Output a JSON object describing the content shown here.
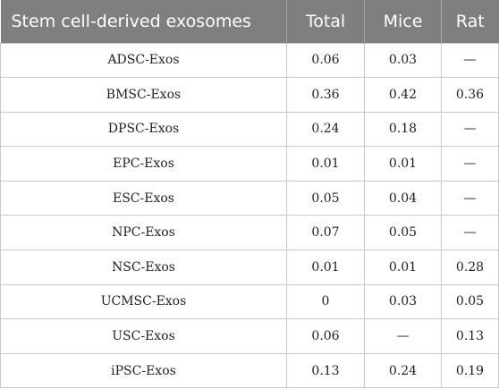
{
  "table": {
    "headers": [
      "Stem cell-derived exosomes",
      "Total",
      "Mice",
      "Rat"
    ],
    "rows": [
      [
        "ADSC-Exos",
        "0.06",
        "0.03",
        "—"
      ],
      [
        "BMSC-Exos",
        "0.36",
        "0.42",
        "0.36"
      ],
      [
        "DPSC-Exos",
        "0.24",
        "0.18",
        "—"
      ],
      [
        "EPC-Exos",
        "0.01",
        "0.01",
        "—"
      ],
      [
        "ESC-Exos",
        "0.05",
        "0.04",
        "—"
      ],
      [
        "NPC-Exos",
        "0.07",
        "0.05",
        "—"
      ],
      [
        "NSC-Exos",
        "0.01",
        "0.01",
        "0.28"
      ],
      [
        "UCMSC-Exos",
        "0",
        "0.03",
        "0.05"
      ],
      [
        "USC-Exos",
        "0.06",
        "—",
        "0.13"
      ],
      [
        "iPSC-Exos",
        "0.13",
        "0.24",
        "0.19"
      ]
    ]
  }
}
